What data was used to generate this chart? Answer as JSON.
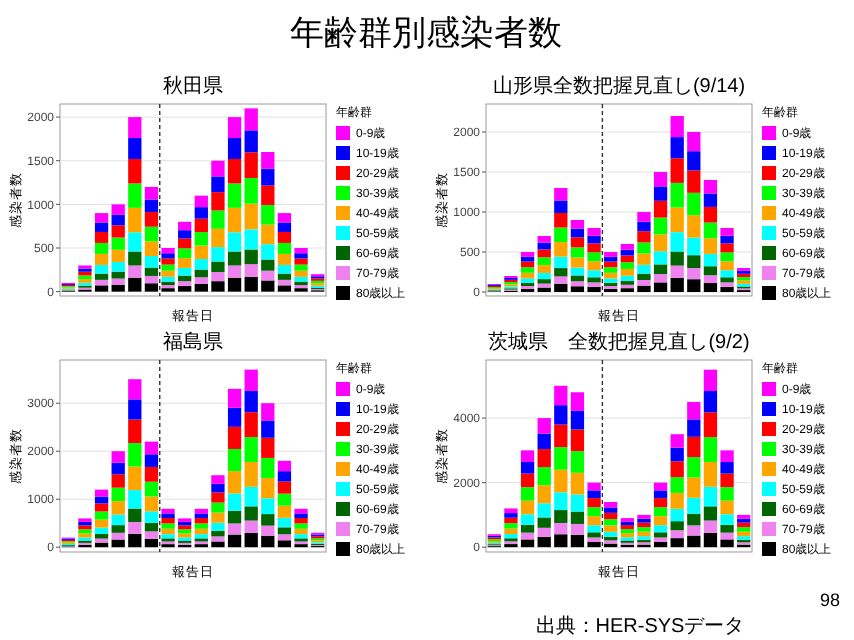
{
  "chart_data": [
    {
      "type": "bar",
      "stacked": true,
      "title": "秋田県",
      "xlabel": "報告日",
      "ylabel": "感染者数",
      "legend_title": "年齢群",
      "legend": "right",
      "grid": "y",
      "annotations": [
        "年齢群別感染者数"
      ],
      "categories": [
        null,
        null,
        null,
        null,
        null,
        null,
        null,
        null,
        null,
        null,
        null,
        null,
        null,
        null,
        null,
        null
      ],
      "ylim": [
        -50,
        2150
      ],
      "yticks": [
        0,
        500,
        1000,
        1500,
        2000
      ],
      "series": [
        {
          "name": "80歳以上",
          "color": "#000000",
          "values": [
            8,
            24,
            72,
            80,
            160,
            96,
            40,
            64,
            88,
            120,
            160,
            168,
            128,
            72,
            40,
            16
          ]
        },
        {
          "name": "70-79歳",
          "color": "#ee82ee",
          "values": [
            7,
            21,
            63,
            70,
            140,
            84,
            35,
            56,
            77,
            105,
            140,
            147,
            112,
            63,
            35,
            14
          ]
        },
        {
          "name": "60-69歳",
          "color": "#006400",
          "values": [
            8,
            24,
            72,
            80,
            160,
            96,
            40,
            64,
            88,
            120,
            160,
            168,
            128,
            72,
            40,
            16
          ]
        },
        {
          "name": "50-59歳",
          "color": "#00ffff",
          "values": [
            11,
            33,
            99,
            110,
            220,
            132,
            55,
            88,
            121,
            165,
            220,
            231,
            176,
            99,
            55,
            22
          ]
        },
        {
          "name": "40-49歳",
          "color": "#ffa500",
          "values": [
            14,
            42,
            126,
            140,
            280,
            168,
            70,
            112,
            154,
            210,
            280,
            294,
            224,
            126,
            70,
            28
          ]
        },
        {
          "name": "30-39歳",
          "color": "#00ff00",
          "values": [
            14,
            42,
            126,
            140,
            280,
            168,
            70,
            112,
            154,
            210,
            280,
            294,
            224,
            126,
            70,
            28
          ]
        },
        {
          "name": "20-29歳",
          "color": "#ff0000",
          "values": [
            14,
            42,
            126,
            140,
            280,
            168,
            70,
            112,
            154,
            210,
            280,
            294,
            224,
            126,
            70,
            28
          ]
        },
        {
          "name": "10-19歳",
          "color": "#0000ff",
          "values": [
            12,
            36,
            108,
            120,
            240,
            144,
            60,
            96,
            132,
            180,
            240,
            252,
            192,
            108,
            60,
            24
          ]
        },
        {
          "name": "0-9歳",
          "color": "#ff00ff",
          "values": [
            12,
            36,
            108,
            120,
            240,
            144,
            60,
            96,
            132,
            180,
            240,
            252,
            192,
            108,
            60,
            24
          ]
        }
      ]
    },
    {
      "type": "bar",
      "stacked": true,
      "title": "山形県全数把握見直し(9/14)",
      "xlabel": "報告日",
      "ylabel": "感染者数",
      "legend_title": "年齢群",
      "legend": "right",
      "grid": "y",
      "categories": [
        null,
        null,
        null,
        null,
        null,
        null,
        null,
        null,
        null,
        null,
        null,
        null,
        null,
        null,
        null,
        null
      ],
      "ylim": [
        -50,
        2350
      ],
      "yticks": [
        0,
        500,
        1000,
        1500,
        2000
      ],
      "series": [
        {
          "name": "80歳以上",
          "color": "#000000",
          "values": [
            8,
            16,
            40,
            56,
            104,
            72,
            64,
            40,
            48,
            80,
            120,
            176,
            160,
            112,
            64,
            24
          ]
        },
        {
          "name": "70-79歳",
          "color": "#ee82ee",
          "values": [
            7,
            14,
            35,
            49,
            91,
            63,
            56,
            35,
            42,
            70,
            105,
            154,
            140,
            98,
            56,
            21
          ]
        },
        {
          "name": "60-69歳",
          "color": "#006400",
          "values": [
            8,
            16,
            40,
            56,
            104,
            72,
            64,
            40,
            48,
            80,
            120,
            176,
            160,
            112,
            64,
            24
          ]
        },
        {
          "name": "50-59歳",
          "color": "#00ffff",
          "values": [
            11,
            22,
            55,
            77,
            143,
            99,
            88,
            55,
            66,
            110,
            165,
            242,
            220,
            154,
            88,
            33
          ]
        },
        {
          "name": "40-49歳",
          "color": "#ffa500",
          "values": [
            14,
            28,
            70,
            98,
            182,
            126,
            112,
            70,
            84,
            140,
            210,
            308,
            280,
            196,
            112,
            42
          ]
        },
        {
          "name": "30-39歳",
          "color": "#00ff00",
          "values": [
            14,
            28,
            70,
            98,
            182,
            126,
            112,
            70,
            84,
            140,
            210,
            308,
            280,
            196,
            112,
            42
          ]
        },
        {
          "name": "20-29歳",
          "color": "#ff0000",
          "values": [
            14,
            28,
            70,
            98,
            182,
            126,
            112,
            70,
            84,
            140,
            210,
            308,
            280,
            196,
            112,
            42
          ]
        },
        {
          "name": "10-19歳",
          "color": "#0000ff",
          "values": [
            12,
            24,
            60,
            84,
            156,
            108,
            96,
            60,
            72,
            120,
            180,
            264,
            240,
            168,
            96,
            36
          ]
        },
        {
          "name": "0-9歳",
          "color": "#ff00ff",
          "values": [
            12,
            24,
            60,
            84,
            156,
            108,
            96,
            60,
            72,
            120,
            180,
            264,
            240,
            168,
            96,
            36
          ]
        }
      ]
    },
    {
      "type": "bar",
      "stacked": true,
      "title": "福島県",
      "xlabel": "報告日",
      "ylabel": "感染者数",
      "legend_title": "年齢群",
      "legend": "right",
      "grid": "y",
      "categories": [
        null,
        null,
        null,
        null,
        null,
        null,
        null,
        null,
        null,
        null,
        null,
        null,
        null,
        null,
        null,
        null
      ],
      "ylim": [
        -100,
        3900
      ],
      "yticks": [
        0,
        1000,
        2000,
        3000
      ],
      "series": [
        {
          "name": "80歳以上",
          "color": "#000000",
          "values": [
            16,
            48,
            96,
            160,
            280,
            176,
            64,
            48,
            64,
            120,
            264,
            296,
            240,
            144,
            64,
            24
          ]
        },
        {
          "name": "70-79歳",
          "color": "#ee82ee",
          "values": [
            14,
            42,
            84,
            140,
            245,
            154,
            56,
            42,
            56,
            105,
            231,
            259,
            210,
            126,
            56,
            21
          ]
        },
        {
          "name": "60-69歳",
          "color": "#006400",
          "values": [
            16,
            48,
            96,
            160,
            280,
            176,
            64,
            48,
            64,
            120,
            264,
            296,
            240,
            144,
            64,
            24
          ]
        },
        {
          "name": "50-59歳",
          "color": "#00ffff",
          "values": [
            22,
            66,
            132,
            220,
            385,
            242,
            88,
            66,
            88,
            165,
            363,
            407,
            330,
            198,
            88,
            33
          ]
        },
        {
          "name": "40-49歳",
          "color": "#ffa500",
          "values": [
            28,
            84,
            168,
            280,
            490,
            308,
            112,
            84,
            112,
            210,
            462,
            518,
            420,
            252,
            112,
            42
          ]
        },
        {
          "name": "30-39歳",
          "color": "#00ff00",
          "values": [
            28,
            84,
            168,
            280,
            490,
            308,
            112,
            84,
            112,
            210,
            462,
            518,
            420,
            252,
            112,
            42
          ]
        },
        {
          "name": "20-29歳",
          "color": "#ff0000",
          "values": [
            28,
            84,
            168,
            280,
            490,
            308,
            112,
            84,
            112,
            210,
            462,
            518,
            420,
            252,
            112,
            42
          ]
        },
        {
          "name": "10-19歳",
          "color": "#0000ff",
          "values": [
            24,
            72,
            144,
            240,
            420,
            264,
            96,
            72,
            96,
            180,
            396,
            444,
            360,
            216,
            96,
            36
          ]
        },
        {
          "name": "0-9歳",
          "color": "#ff00ff",
          "values": [
            24,
            72,
            144,
            240,
            420,
            264,
            96,
            72,
            96,
            180,
            396,
            444,
            360,
            216,
            96,
            36
          ]
        }
      ]
    },
    {
      "type": "bar",
      "stacked": true,
      "title": "茨城県　全数把握見直し(9/2)",
      "xlabel": "報告日",
      "ylabel": "感染者数",
      "legend_title": "年齢群",
      "legend": "right",
      "grid": "y",
      "annotations": [
        "出典：HER-SYSデータ",
        "98"
      ],
      "categories": [
        null,
        null,
        null,
        null,
        null,
        null,
        null,
        null,
        null,
        null,
        null,
        null,
        null,
        null,
        null,
        null
      ],
      "ylim": [
        -150,
        5800
      ],
      "yticks": [
        0,
        2000,
        4000
      ],
      "series": [
        {
          "name": "80歳以上",
          "color": "#000000",
          "values": [
            32,
            96,
            240,
            320,
            400,
            384,
            160,
            112,
            72,
            80,
            160,
            280,
            360,
            440,
            240,
            80
          ]
        },
        {
          "name": "70-79歳",
          "color": "#ee82ee",
          "values": [
            28,
            84,
            210,
            280,
            350,
            336,
            140,
            98,
            63,
            70,
            140,
            245,
            315,
            385,
            210,
            70
          ]
        },
        {
          "name": "60-69歳",
          "color": "#006400",
          "values": [
            32,
            96,
            240,
            320,
            400,
            384,
            160,
            112,
            72,
            80,
            160,
            280,
            360,
            440,
            240,
            80
          ]
        },
        {
          "name": "50-59歳",
          "color": "#00ffff",
          "values": [
            44,
            132,
            330,
            440,
            550,
            528,
            220,
            154,
            99,
            110,
            220,
            385,
            495,
            605,
            330,
            110
          ]
        },
        {
          "name": "40-49歳",
          "color": "#ffa500",
          "values": [
            56,
            168,
            420,
            560,
            700,
            672,
            280,
            196,
            126,
            140,
            280,
            490,
            630,
            770,
            420,
            140
          ]
        },
        {
          "name": "30-39歳",
          "color": "#00ff00",
          "values": [
            56,
            168,
            420,
            560,
            700,
            672,
            280,
            196,
            126,
            140,
            280,
            490,
            630,
            770,
            420,
            140
          ]
        },
        {
          "name": "20-29歳",
          "color": "#ff0000",
          "values": [
            56,
            168,
            420,
            560,
            700,
            672,
            280,
            196,
            126,
            140,
            280,
            490,
            630,
            770,
            420,
            140
          ]
        },
        {
          "name": "10-19歳",
          "color": "#0000ff",
          "values": [
            48,
            144,
            360,
            480,
            600,
            576,
            240,
            168,
            108,
            120,
            240,
            420,
            540,
            660,
            360,
            120
          ]
        },
        {
          "name": "0-9歳",
          "color": "#ff00ff",
          "values": [
            48,
            144,
            360,
            480,
            600,
            576,
            240,
            168,
            108,
            120,
            240,
            420,
            540,
            660,
            360,
            120
          ]
        }
      ]
    }
  ]
}
